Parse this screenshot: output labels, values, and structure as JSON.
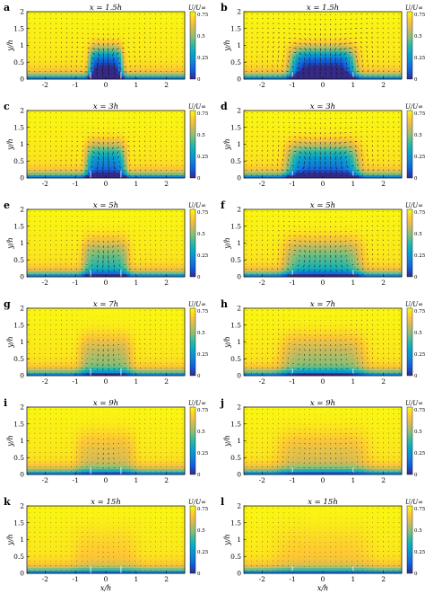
{
  "colorbar": {
    "label": "U/U∞",
    "ticks": [
      0,
      0.25,
      0.5,
      0.75
    ],
    "tick_labels": [
      "0",
      "0.25",
      "0.5",
      "0.75"
    ],
    "colormap": "parula",
    "stops": [
      "#352a87",
      "#0f5cdd",
      "#1481d6",
      "#06a4ca",
      "#2eb7a4",
      "#87bf77",
      "#d1bb59",
      "#fec832",
      "#f9fb0e"
    ]
  },
  "axis_labels": {
    "x": "x/h",
    "y": "y/h"
  },
  "chart_data": [
    {
      "id": "a",
      "type": "heatmap",
      "title": "x = 1.5h",
      "hole_halfwidth": 0.5,
      "xlim": [
        -2.6,
        2.6
      ],
      "ylim": [
        0,
        2
      ],
      "xticks": [
        -2,
        -1,
        0,
        1,
        2
      ],
      "yticks": [
        0,
        0.5,
        1,
        1.5,
        2
      ],
      "xtick_labels": [
        "-2",
        "-1",
        "0",
        "1",
        "2"
      ],
      "ytick_labels": [
        "0",
        "0.5",
        "1",
        "1.5",
        "2"
      ],
      "xlabel": ""
    },
    {
      "id": "b",
      "type": "heatmap",
      "title": "x = 1.5h",
      "hole_halfwidth": 1.0,
      "xlim": [
        -2.6,
        2.6
      ],
      "ylim": [
        0,
        2
      ],
      "xticks": [
        -2,
        -1,
        0,
        1,
        2
      ],
      "yticks": [
        0,
        0.5,
        1,
        1.5,
        2
      ],
      "xtick_labels": [
        "-2",
        "-1",
        "0",
        "1",
        "2"
      ],
      "ytick_labels": [
        "0",
        "0.5",
        "1",
        "1.5",
        "2"
      ],
      "xlabel": ""
    },
    {
      "id": "c",
      "type": "heatmap",
      "title": "x = 3h",
      "hole_halfwidth": 0.5,
      "xlim": [
        -2.6,
        2.6
      ],
      "ylim": [
        0,
        2
      ],
      "xticks": [
        -2,
        -1,
        0,
        1,
        2
      ],
      "yticks": [
        0,
        0.5,
        1,
        1.5,
        2
      ],
      "xtick_labels": [
        "-2",
        "-1",
        "0",
        "1",
        "2"
      ],
      "ytick_labels": [
        "0",
        "0.5",
        "1",
        "1.5",
        "2"
      ],
      "xlabel": ""
    },
    {
      "id": "d",
      "type": "heatmap",
      "title": "x = 3h",
      "hole_halfwidth": 1.0,
      "xlim": [
        -2.6,
        2.6
      ],
      "ylim": [
        0,
        2
      ],
      "xticks": [
        -2,
        -1,
        0,
        1,
        2
      ],
      "yticks": [
        0,
        0.5,
        1,
        1.5,
        2
      ],
      "xtick_labels": [
        "-2",
        "-1",
        "0",
        "1",
        "2"
      ],
      "ytick_labels": [
        "0",
        "0.5",
        "1",
        "1.5",
        "2"
      ],
      "xlabel": ""
    },
    {
      "id": "e",
      "type": "heatmap",
      "title": "x = 5h",
      "hole_halfwidth": 0.5,
      "xlim": [
        -2.6,
        2.6
      ],
      "ylim": [
        0,
        2
      ],
      "xticks": [
        -2,
        -1,
        0,
        1,
        2
      ],
      "yticks": [
        0,
        0.5,
        1,
        1.5,
        2
      ],
      "xtick_labels": [
        "-2",
        "-1",
        "0",
        "1",
        "2"
      ],
      "ytick_labels": [
        "0",
        "0.5",
        "1",
        "1.5",
        "2"
      ],
      "xlabel": ""
    },
    {
      "id": "f",
      "type": "heatmap",
      "title": "x = 5h",
      "hole_halfwidth": 1.0,
      "xlim": [
        -2.6,
        2.6
      ],
      "ylim": [
        0,
        2
      ],
      "xticks": [
        -2,
        -1,
        0,
        1,
        2
      ],
      "yticks": [
        0,
        0.5,
        1,
        1.5,
        2
      ],
      "xtick_labels": [
        "-2",
        "-1",
        "0",
        "1",
        "2"
      ],
      "ytick_labels": [
        "0",
        "0.5",
        "1",
        "1.5",
        "2"
      ],
      "xlabel": ""
    },
    {
      "id": "g",
      "type": "heatmap",
      "title": "x = 7h",
      "hole_halfwidth": 0.5,
      "xlim": [
        -2.6,
        2.6
      ],
      "ylim": [
        0,
        2
      ],
      "xticks": [
        -2,
        -1,
        0,
        1,
        2
      ],
      "yticks": [
        0,
        0.5,
        1,
        1.5,
        2
      ],
      "xtick_labels": [
        "-2",
        "-1",
        "0",
        "1",
        "2"
      ],
      "ytick_labels": [
        "0",
        "0.5",
        "1",
        "1.5",
        "2"
      ],
      "xlabel": ""
    },
    {
      "id": "h",
      "type": "heatmap",
      "title": "x = 7h",
      "hole_halfwidth": 1.0,
      "xlim": [
        -2.6,
        2.6
      ],
      "ylim": [
        0,
        2
      ],
      "xticks": [
        -2,
        -1,
        0,
        1,
        2
      ],
      "yticks": [
        0,
        0.5,
        1,
        1.5,
        2
      ],
      "xtick_labels": [
        "-2",
        "-1",
        "0",
        "1",
        "2"
      ],
      "ytick_labels": [
        "0",
        "0.5",
        "1",
        "1.5",
        "2"
      ],
      "xlabel": ""
    },
    {
      "id": "i",
      "type": "heatmap",
      "title": "x = 9h",
      "hole_halfwidth": 0.5,
      "xlim": [
        -2.6,
        2.6
      ],
      "ylim": [
        0,
        2
      ],
      "xticks": [
        -2,
        -1,
        0,
        1,
        2
      ],
      "yticks": [
        0,
        0.5,
        1,
        1.5,
        2
      ],
      "xtick_labels": [
        "-2",
        "-1",
        "0",
        "1",
        "2"
      ],
      "ytick_labels": [
        "0",
        "0.5",
        "1",
        "1.5",
        "2"
      ],
      "xlabel": ""
    },
    {
      "id": "j",
      "type": "heatmap",
      "title": "x = 9h",
      "hole_halfwidth": 1.0,
      "xlim": [
        -2.6,
        2.6
      ],
      "ylim": [
        0,
        2
      ],
      "xticks": [
        -2,
        -1,
        0,
        1,
        2
      ],
      "yticks": [
        0,
        0.5,
        1,
        1.5,
        2
      ],
      "xtick_labels": [
        "-2",
        "-1",
        "0",
        "1",
        "2"
      ],
      "ytick_labels": [
        "0",
        "0.5",
        "1",
        "1.5",
        "2"
      ],
      "xlabel": ""
    },
    {
      "id": "k",
      "type": "heatmap",
      "title": "x = 15h",
      "hole_halfwidth": 0.5,
      "xlim": [
        -2.6,
        2.6
      ],
      "ylim": [
        0,
        2
      ],
      "xticks": [
        -2,
        -1,
        0,
        1,
        2
      ],
      "yticks": [
        0,
        0.5,
        1,
        1.5,
        2
      ],
      "xtick_labels": [
        "-2",
        "-1",
        "0",
        "1",
        "2"
      ],
      "ytick_labels": [
        "0",
        "0.5",
        "1",
        "1.5",
        "2"
      ],
      "xlabel": "x/h"
    },
    {
      "id": "l",
      "type": "heatmap",
      "title": "x = 15h",
      "hole_halfwidth": 1.0,
      "xlim": [
        -2.6,
        2.6
      ],
      "ylim": [
        0,
        2
      ],
      "xticks": [
        -2,
        -1,
        0,
        1,
        2
      ],
      "yticks": [
        0,
        0.5,
        1,
        1.5,
        2
      ],
      "xtick_labels": [
        "-2",
        "-1",
        "0",
        "1",
        "2"
      ],
      "ytick_labels": [
        "0",
        "0.5",
        "1",
        "1.5",
        "2"
      ],
      "xlabel": "x/h"
    }
  ]
}
